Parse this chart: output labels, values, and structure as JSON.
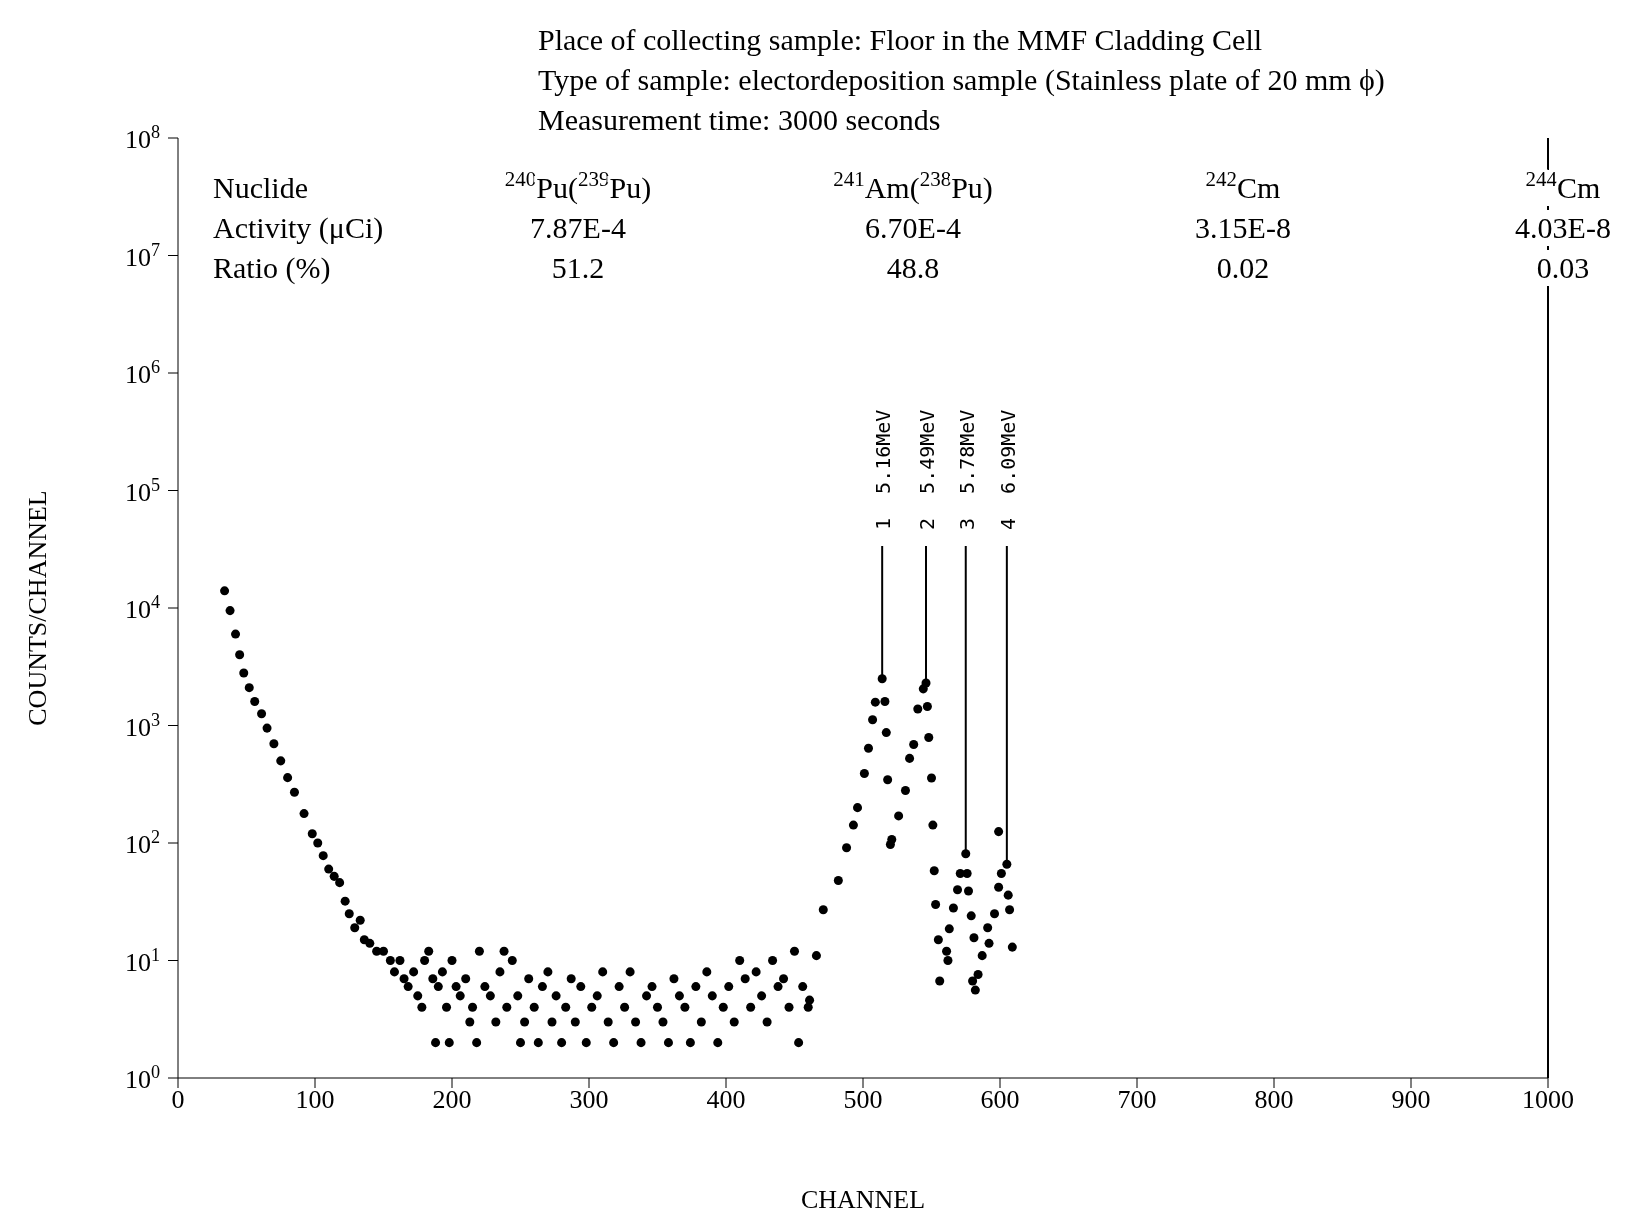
{
  "chart_data": {
    "type": "scatter",
    "title": "Place of collecting sample: Floor in the MMF Cladding Cell",
    "subtitle": "Type of sample: electordeposition sample (Stainless plate of 20 mm ϕ)",
    "xlabel": "CHANNEL",
    "ylabel": "COUNTS/CHANNEL",
    "annotations": [
      "Measurement time: 3000 seconds",
      "Nuclide",
      "Activity (μCi)",
      "Ratio (%)",
      "$^{240}$Pu($^{239}$Pu)",
      "7.87E-4",
      "51.2",
      "$^{241}$Am($^{238}$Pu)",
      "6.70E-4",
      "48.8",
      "$^{242}$Cm",
      "3.15E-8",
      "0.02",
      "$^{244}$Cm",
      "4.03E-8",
      "0.03",
      {
        "text": "1  5.16MeV",
        "x": 514,
        "y": 2500
      },
      {
        "text": "2  5.49MeV",
        "x": 546,
        "y": 2300
      },
      {
        "text": "3  5.78MeV",
        "x": 575,
        "y": 81
      },
      {
        "text": "4  6.09MeV",
        "x": 605,
        "y": 66
      }
    ],
    "x": [
      34,
      38,
      42,
      45,
      48,
      52,
      56,
      61,
      65,
      70,
      75,
      80,
      85,
      92,
      98,
      102,
      106,
      110,
      114,
      118,
      122,
      125,
      129,
      133,
      136,
      140,
      145,
      150,
      155,
      158,
      162,
      165,
      168,
      172,
      175,
      178,
      180,
      183,
      186,
      188,
      190,
      193,
      196,
      198,
      200,
      203,
      206,
      210,
      213,
      215,
      218,
      220,
      224,
      228,
      232,
      235,
      238,
      240,
      244,
      248,
      250,
      253,
      256,
      260,
      263,
      266,
      270,
      273,
      276,
      280,
      283,
      287,
      290,
      294,
      298,
      302,
      306,
      310,
      314,
      318,
      322,
      326,
      330,
      334,
      338,
      342,
      346,
      350,
      354,
      358,
      362,
      366,
      370,
      374,
      378,
      382,
      386,
      390,
      394,
      398,
      402,
      406,
      410,
      414,
      418,
      422,
      426,
      430,
      434,
      438,
      442,
      446,
      450,
      453,
      456,
      460,
      461,
      466,
      471,
      482,
      488,
      493,
      496,
      501,
      504,
      507,
      509,
      514,
      516,
      517,
      518,
      520,
      521,
      526,
      531,
      534,
      537,
      540,
      544,
      546,
      547,
      548,
      550,
      551,
      552,
      553,
      555,
      556,
      561,
      562,
      563,
      566,
      569,
      571,
      575,
      576,
      577,
      579,
      581,
      580,
      582,
      584,
      587,
      591,
      592,
      596,
      599,
      599,
      601,
      605,
      606,
      607,
      609
    ],
    "values": [
      14000,
      9500,
      6000,
      4000,
      2800,
      2100,
      1600,
      1260,
      950,
      700,
      500,
      360,
      270,
      178,
      120,
      100,
      78,
      60,
      52,
      46,
      32,
      25,
      19,
      22,
      15,
      14,
      12,
      12,
      10,
      8,
      10,
      7,
      6,
      8,
      5,
      4,
      10,
      12,
      7,
      2,
      6,
      8,
      4,
      2,
      10,
      6,
      5,
      7,
      3,
      4,
      2,
      12,
      6,
      5,
      3,
      8,
      12,
      4,
      10,
      5,
      2,
      3,
      7,
      4,
      2,
      6,
      8,
      3,
      5,
      2,
      4,
      7,
      3,
      6,
      2,
      4,
      5,
      8,
      3,
      2,
      6,
      4,
      8,
      3,
      2,
      5,
      6,
      4,
      3,
      2,
      7,
      5,
      4,
      2,
      6,
      3,
      8,
      5,
      2,
      4,
      6,
      3,
      10,
      7,
      4,
      8,
      5,
      3,
      10,
      6,
      7,
      4,
      12,
      2,
      6,
      4,
      4.6,
      11,
      27,
      48,
      91,
      142,
      200,
      390,
      640,
      1120,
      1580,
      2500,
      1600,
      870,
      345,
      97,
      107,
      170,
      280,
      525,
      690,
      1380,
      2050,
      2300,
      1450,
      790,
      357,
      142,
      58,
      30,
      15,
      6.7,
      12,
      10,
      18.6,
      28,
      40,
      55,
      81,
      55,
      39,
      24,
      15.6,
      6.7,
      5.6,
      7.6,
      11,
      19,
      14,
      25,
      42,
      125,
      55,
      66,
      36,
      27,
      13
    ],
    "color": "#000000",
    "marker": "circle",
    "log": "y",
    "xlim": [
      0,
      1000
    ],
    "xticks": [
      0,
      100,
      200,
      300,
      400,
      500,
      600,
      700,
      800,
      900,
      1000
    ],
    "ylim": [
      1,
      100000000
    ],
    "yticks": [
      {
        "value": 1,
        "label": "10$^{0}$"
      },
      {
        "value": 10,
        "label": "10$^{1}$"
      },
      {
        "value": 100,
        "label": "10$^{2}$"
      },
      {
        "value": 1000,
        "label": "10$^{3}$"
      },
      {
        "value": 10000,
        "label": "10$^{4}$"
      },
      {
        "value": 100000,
        "label": "10$^{5}$"
      },
      {
        "value": 1000000,
        "label": "10$^{6}$"
      },
      {
        "value": 10000000,
        "label": "10$^{7}$"
      },
      {
        "value": 100000000,
        "label": "10$^{8}$"
      }
    ],
    "ref_lines": [
      {
        "axis": "x",
        "value": 1000,
        "color": "#000000"
      }
    ],
    "grid": false,
    "legend": false
  }
}
